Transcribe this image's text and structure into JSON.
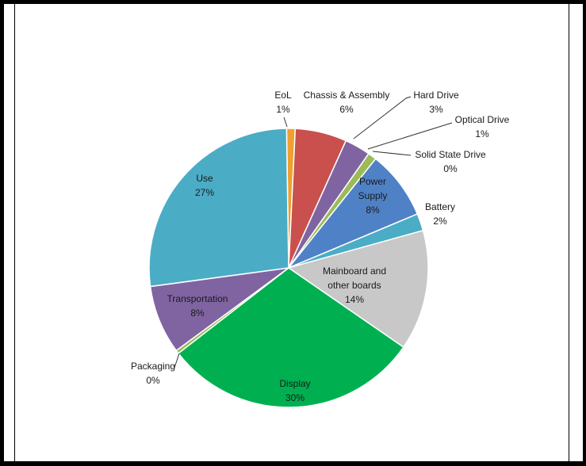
{
  "chart_data": {
    "type": "pie",
    "title": "",
    "slices": [
      {
        "label": "EoL",
        "value": 1,
        "value_label": "1%",
        "color": "#f0a030"
      },
      {
        "label": "Chassis & Assembly",
        "value": 6,
        "value_label": "6%",
        "color": "#c9504c"
      },
      {
        "label": "Hard Drive",
        "value": 3,
        "value_label": "3%",
        "color": "#8064a2"
      },
      {
        "label": "Optical Drive",
        "value": 1,
        "value_label": "1%",
        "color": "#9bbb59"
      },
      {
        "label": "Solid State Drive",
        "value": 0,
        "value_label": "0%",
        "color": "#4bacc6"
      },
      {
        "label": "Power Supply",
        "value": 8,
        "value_label": "8%",
        "color": "#4f81c6"
      },
      {
        "label": "Battery",
        "value": 2,
        "value_label": "2%",
        "color": "#4bacc6"
      },
      {
        "label": "Mainboard and other boards",
        "value": 14,
        "value_label": "14%",
        "color": "#c8c8c8"
      },
      {
        "label": "Display",
        "value": 30,
        "value_label": "30%",
        "color": "#00b050"
      },
      {
        "label": "Packaging",
        "value": 0.4,
        "value_label": "0%",
        "color": "#9bbb59"
      },
      {
        "label": "Transportation",
        "value": 8,
        "value_label": "8%",
        "color": "#8064a2"
      },
      {
        "label": "Use",
        "value": 27,
        "value_label": "27%",
        "color": "#4bacc6"
      }
    ]
  }
}
